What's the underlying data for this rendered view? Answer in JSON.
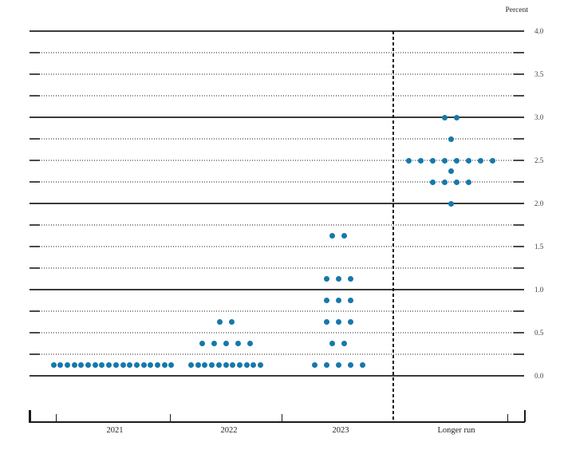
{
  "chart_data": {
    "type": "scatter",
    "subtype": "fomc-dot-plot",
    "ylabel": "Percent",
    "ylim": [
      0.0,
      4.0
    ],
    "gridline_step": 0.25,
    "solid_gridlines": [
      0.0,
      1.0,
      2.0,
      3.0,
      4.0
    ],
    "ytick_labels": [
      "0.0",
      "0.5",
      "1.0",
      "1.5",
      "2.0",
      "2.5",
      "3.0",
      "3.5",
      "4.0"
    ],
    "grid": true,
    "legend_position": "none",
    "categories": [
      "2021",
      "2022",
      "2023",
      "Longer run"
    ],
    "series": [
      {
        "name": "2021",
        "dots": [
          {
            "rate": 0.125,
            "count": 18
          }
        ]
      },
      {
        "name": "2022",
        "dots": [
          {
            "rate": 0.625,
            "count": 2
          },
          {
            "rate": 0.375,
            "count": 5
          },
          {
            "rate": 0.125,
            "count": 11
          }
        ]
      },
      {
        "name": "2023",
        "dots": [
          {
            "rate": 1.625,
            "count": 2
          },
          {
            "rate": 1.125,
            "count": 3
          },
          {
            "rate": 0.875,
            "count": 3
          },
          {
            "rate": 0.625,
            "count": 3
          },
          {
            "rate": 0.375,
            "count": 2
          },
          {
            "rate": 0.125,
            "count": 5
          }
        ]
      },
      {
        "name": "Longer run",
        "dots": [
          {
            "rate": 3.0,
            "count": 2
          },
          {
            "rate": 2.75,
            "count": 1
          },
          {
            "rate": 2.5,
            "count": 8
          },
          {
            "rate": 2.375,
            "count": 1
          },
          {
            "rate": 2.25,
            "count": 4
          },
          {
            "rate": 2.0,
            "count": 1
          }
        ]
      }
    ],
    "colors": {
      "dot": "#1678ab",
      "solid_grid": "#3b3b3b",
      "dotted_grid": "#8c8c8c",
      "axis": "#1b1b1b",
      "tick_label": "#3f3f3f"
    }
  }
}
